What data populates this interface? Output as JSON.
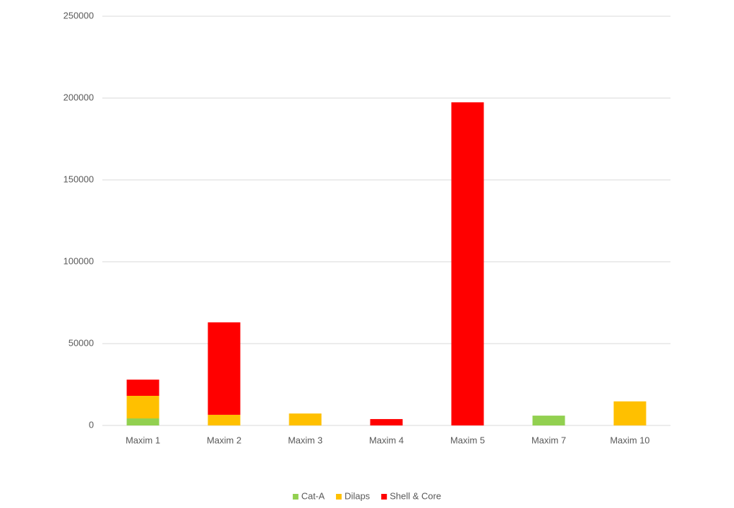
{
  "chart_data": {
    "type": "stacked_bar",
    "categories": [
      "Maxim 1",
      "Maxim 2",
      "Maxim 3",
      "Maxim 4",
      "Maxim 5",
      "Maxim 7",
      "Maxim 10"
    ],
    "series": [
      {
        "name": "Cat-A",
        "color": "#92d050",
        "values": [
          4300,
          null,
          null,
          null,
          null,
          6000,
          null
        ]
      },
      {
        "name": "Dilaps",
        "color": "#ffc000",
        "values": [
          13800,
          6500,
          7300,
          null,
          null,
          null,
          14700
        ]
      },
      {
        "name": "Shell & Core",
        "color": "#ff0000",
        "values": [
          9900,
          56500,
          null,
          3900,
          197400,
          null,
          null
        ]
      }
    ],
    "ylim": [
      0,
      250000
    ],
    "yticks": [
      0,
      50000,
      100000,
      150000,
      200000,
      250000
    ],
    "grid": true,
    "legend": "bottom"
  }
}
